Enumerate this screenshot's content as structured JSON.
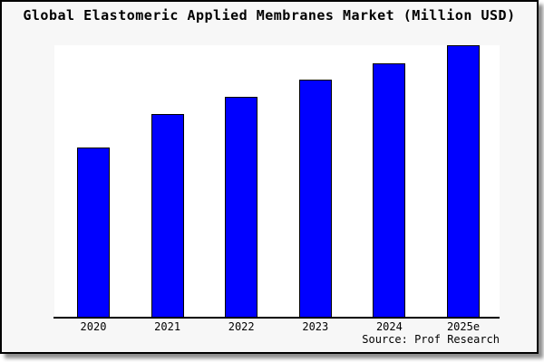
{
  "chart_data": {
    "type": "bar",
    "title": "Global Elastomeric Applied Membranes Market (Million USD)",
    "categories": [
      "2020",
      "2021",
      "2022",
      "2023",
      "2024",
      "2025e"
    ],
    "values": [
      189,
      226,
      245,
      264,
      282,
      302
    ],
    "xlabel": "",
    "ylabel": "",
    "ylim": [
      0,
      302
    ],
    "grid": false,
    "legend": false,
    "note": "No y-axis scale or value labels shown in image; values are relative bar heights",
    "bar_color": "#0000ff",
    "bar_border_color": "#000000"
  },
  "source_note": "Source: Prof Research",
  "colors": {
    "canvas_bg": "#f7f7f7",
    "plot_bg": "#ffffff",
    "frame_border": "#000000",
    "bar": "#0000ff",
    "text": "#000000"
  }
}
